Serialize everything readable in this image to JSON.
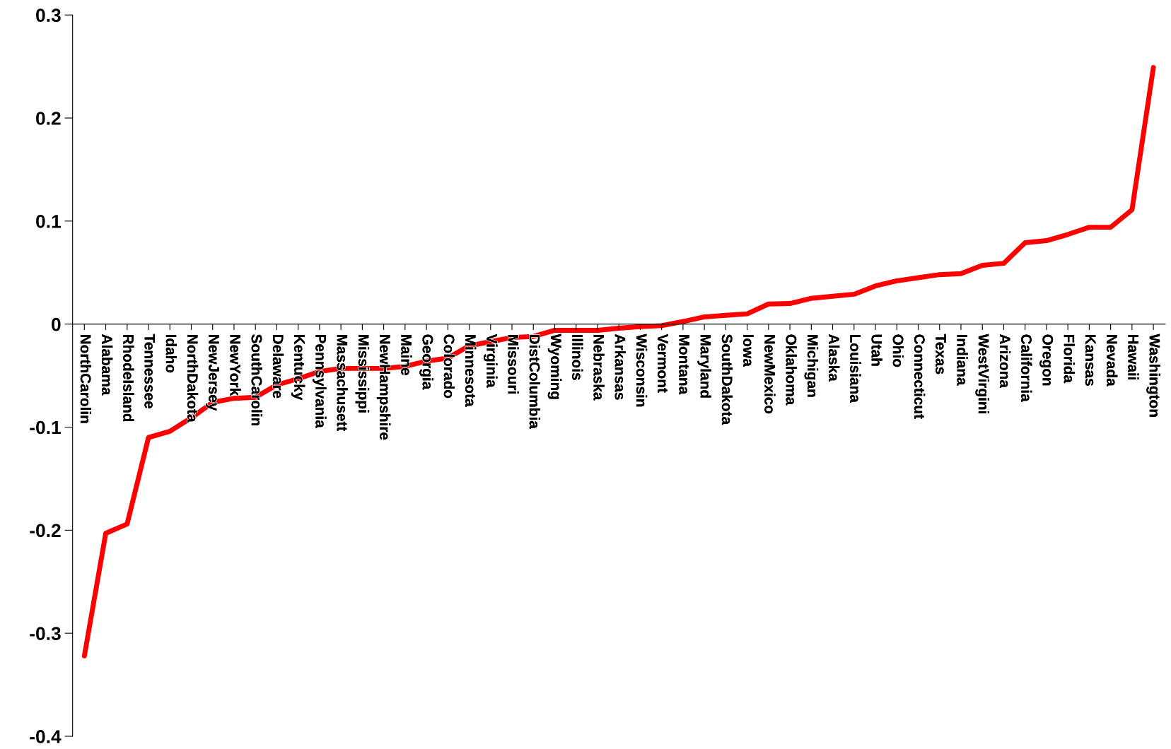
{
  "chart_data": {
    "type": "line",
    "categories": [
      "NorthCarolin",
      "Alabama",
      "RhodeIsland",
      "Tennessee",
      "Idaho",
      "NorthDakota",
      "NewJersey",
      "NewYork",
      "SouthCarolin",
      "Delaware",
      "Kentucky",
      "Pennsylvania",
      "Massachusett",
      "Mississippi",
      "NewHampshire",
      "Maine",
      "Georgia",
      "Colorado",
      "Minnesota",
      "Virginia",
      "Missouri",
      "DistColumbia",
      "Wyoming",
      "Illinois",
      "Nebraska",
      "Arkansas",
      "Wisconsin",
      "Vermont",
      "Montana",
      "Maryland",
      "SouthDakota",
      "Iowa",
      "NewMexico",
      "Oklahoma",
      "Michigan",
      "Alaska",
      "Louisiana",
      "Utah",
      "Ohio",
      "Connecticut",
      "Texas",
      "Indiana",
      "WestVirgini",
      "Arizona",
      "California",
      "Oregon",
      "Florida",
      "Kansas",
      "Nevada",
      "Hawaii",
      "Washington"
    ],
    "series": [
      {
        "color": "#ff0000",
        "values": [
          -0.322,
          -0.203,
          -0.194,
          -0.11,
          -0.104,
          -0.091,
          -0.076,
          -0.072,
          -0.071,
          -0.059,
          -0.053,
          -0.046,
          -0.043,
          -0.043,
          -0.043,
          -0.041,
          -0.036,
          -0.033,
          -0.021,
          -0.017,
          -0.013,
          -0.012,
          -0.006,
          -0.006,
          -0.006,
          -0.004,
          -0.0025,
          -0.0015,
          0.0025,
          0.007,
          0.0085,
          0.01,
          0.0195,
          0.02,
          0.025,
          0.027,
          0.029,
          0.037,
          0.042,
          0.045,
          0.048,
          0.049,
          0.057,
          0.059,
          0.079,
          0.081,
          0.087,
          0.094,
          0.094,
          0.111,
          0.249
        ]
      }
    ],
    "ylim": [
      -0.4,
      0.3
    ],
    "yticks": [
      -0.4,
      -0.3,
      -0.2,
      -0.1,
      0,
      0.1,
      0.2,
      0.3
    ],
    "grid": false,
    "legend": false,
    "marker": "none",
    "line_style": "solid"
  }
}
